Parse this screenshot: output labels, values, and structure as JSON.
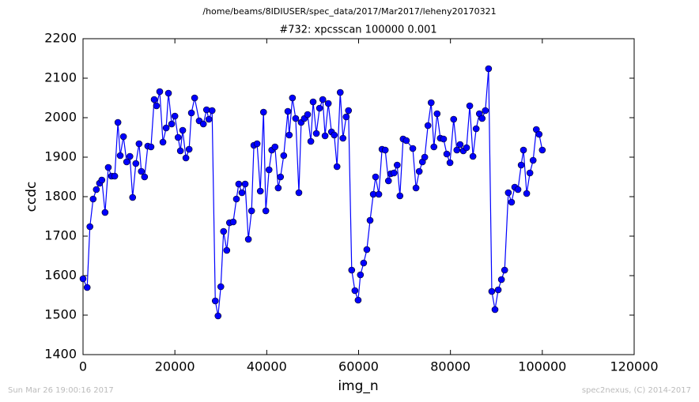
{
  "chart_data": {
    "type": "line",
    "title": "/home/beams/8IDIUSER/spec_data/2017/Mar2017/leheny20170321",
    "subtitle": "#732: xpcsscan 100000 0.001",
    "xlabel": "img_n",
    "ylabel": "ccdc",
    "annotations": [
      "Sun Mar 26 19:00:16 2017",
      "spec2nexus, (C) 2014-2017"
    ],
    "color": "#0000ff",
    "xlim": [
      0,
      120000
    ],
    "ylim": [
      1400,
      2200
    ],
    "xticks": [
      0,
      20000,
      40000,
      60000,
      80000,
      100000,
      120000
    ],
    "yticks": [
      1400,
      1500,
      1600,
      1700,
      1800,
      1900,
      2000,
      2100,
      2200
    ],
    "x": [
      0,
      900,
      1500,
      2200,
      2900,
      3600,
      4100,
      4800,
      5500,
      6200,
      6900,
      7600,
      8100,
      8800,
      9500,
      10200,
      10800,
      11500,
      12200,
      12700,
      13400,
      14100,
      14800,
      15500,
      16000,
      16700,
      17400,
      18100,
      18600,
      19300,
      20000,
      20700,
      21200,
      21700,
      22400,
      23100,
      23600,
      24300,
      25300,
      26200,
      26900,
      27400,
      28100,
      28800,
      29400,
      30000,
      30600,
      31300,
      31900,
      32700,
      33400,
      33900,
      34600,
      35300,
      36000,
      36700,
      37200,
      37900,
      38600,
      39300,
      39800,
      40500,
      41100,
      41800,
      42500,
      43000,
      43700,
      44600,
      44900,
      45600,
      46300,
      47000,
      47500,
      48200,
      48900,
      49600,
      50100,
      50800,
      51500,
      52200,
      52700,
      53400,
      54100,
      54700,
      55300,
      56000,
      56600,
      57300,
      57800,
      58500,
      59200,
      59900,
      60400,
      61100,
      61800,
      62500,
      63200,
      63700,
      64400,
      65100,
      65800,
      66500,
      67000,
      67700,
      68400,
      69000,
      69700,
      70400,
      71800,
      72500,
      73200,
      73900,
      74400,
      75100,
      75800,
      76400,
      77100,
      77800,
      78500,
      79200,
      79900,
      80700,
      81400,
      82100,
      82800,
      83500,
      84200,
      84900,
      85600,
      86300,
      86900,
      87600,
      88300,
      89000,
      89700,
      90400,
      91100,
      91800,
      92600,
      93300,
      94000,
      94700,
      95400,
      95900,
      96600,
      97300,
      98000,
      98700,
      99300,
      100000
    ],
    "values": [
      1592,
      1570,
      1724,
      1794,
      1818,
      1834,
      1842,
      1760,
      1874,
      1852,
      1852,
      1988,
      1904,
      1952,
      1888,
      1902,
      1798,
      1884,
      1934,
      1864,
      1850,
      1928,
      1926,
      2046,
      2030,
      2066,
      1938,
      1974,
      2062,
      1984,
      2004,
      1950,
      1916,
      1968,
      1898,
      1920,
      2012,
      2050,
      1992,
      1984,
      2020,
      1996,
      2018,
      1536,
      1498,
      1572,
      1712,
      1664,
      1734,
      1736,
      1794,
      1832,
      1810,
      1832,
      1692,
      1764,
      1930,
      1934,
      1814,
      2014,
      1764,
      1868,
      1918,
      1926,
      1822,
      1850,
      1904,
      2016,
      1956,
      2050,
      1998,
      1810,
      1988,
      1998,
      2008,
      1940,
      2040,
      1960,
      2024,
      2046,
      1954,
      2036,
      1964,
      1956,
      1876,
      2064,
      1948,
      2002,
      2018,
      1614,
      1562,
      1538,
      1602,
      1632,
      1666,
      1740,
      1806,
      1850,
      1806,
      1920,
      1918,
      1840,
      1858,
      1860,
      1880,
      1802,
      1946,
      1942,
      1922,
      1822,
      1864,
      1888,
      1900,
      1980,
      2038,
      1926,
      2010,
      1948,
      1946,
      1908,
      1886,
      1996,
      1918,
      1932,
      1916,
      1924,
      2030,
      1902,
      1972,
      2010,
      1998,
      2018,
      2124,
      1560,
      1514,
      1564,
      1590,
      1614,
      1810,
      1786,
      1824,
      1818,
      1880,
      1918,
      1808,
      1860,
      1892,
      1970,
      1958,
      1918
    ]
  }
}
